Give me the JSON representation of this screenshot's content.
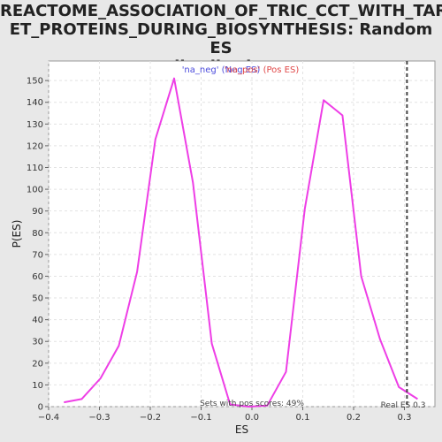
{
  "chart_data": {
    "type": "line",
    "title_lines": [
      "REACTOME_ASSOCIATION_OF_TRIC_CCT_WITH_TARG",
      "ET_PROTEINS_DURING_BIOSYNTHESIS: Random ES",
      "distribution"
    ],
    "xlabel": "ES",
    "ylabel": "P(ES)",
    "xlim": [
      -0.4,
      0.36
    ],
    "ylim": [
      0,
      159
    ],
    "xticks": [
      -0.4,
      -0.3,
      -0.2,
      -0.1,
      0.0,
      0.1,
      0.2,
      0.3
    ],
    "xtick_labels": [
      "−0.4",
      "−0.3",
      "−0.2",
      "−0.1",
      "0.0",
      "0.1",
      "0.2",
      "0.3"
    ],
    "yticks": [
      0,
      10,
      20,
      30,
      40,
      50,
      60,
      70,
      80,
      90,
      100,
      110,
      120,
      130,
      140,
      150
    ],
    "grid": true,
    "legend": [
      {
        "label": "'na_neg' (Neg ES)",
        "color": "#4b4bdc"
      },
      {
        "label": "'na_pos' (Pos ES)",
        "color": "#e04848"
      }
    ],
    "series": [
      {
        "color": "#ee3ee6",
        "x": [
          -0.37,
          -0.335,
          -0.298,
          -0.262,
          -0.226,
          -0.19,
          -0.153,
          -0.116,
          -0.079,
          -0.043,
          -0.006,
          0.03,
          0.067,
          0.104,
          0.141,
          0.178,
          0.215,
          0.252,
          0.289,
          0.326
        ],
        "y": [
          2,
          3.5,
          13,
          28,
          62,
          123,
          151,
          103,
          29,
          1,
          0,
          0.5,
          16,
          91,
          141,
          134,
          60,
          31,
          9,
          3.5
        ]
      }
    ],
    "real_es": 0.305,
    "real_es_label": "Real ES 0.3",
    "footer_note": "Sets with pos scores: 49%"
  }
}
